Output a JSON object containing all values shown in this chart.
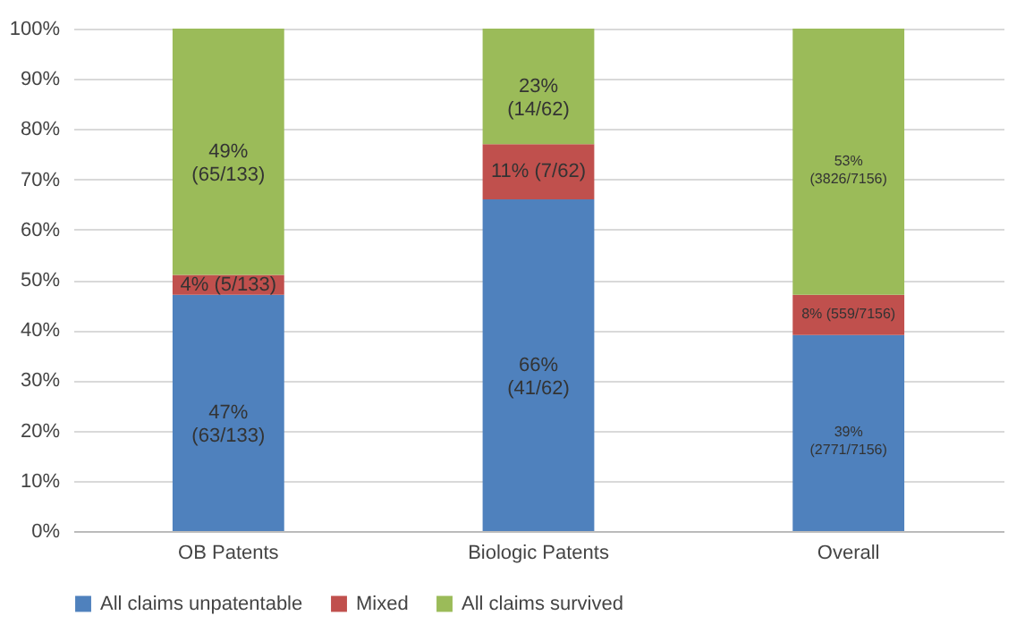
{
  "chart_data": {
    "type": "bar",
    "stacked": true,
    "categories": [
      "OB Patents",
      "Biologic Patents",
      "Overall"
    ],
    "series": [
      {
        "name": "All claims unpatentable",
        "color": "#4f81bd",
        "values": [
          47,
          66,
          39
        ],
        "value_labels": [
          "47%\n(63/133)",
          "66%\n(41/62)",
          "39%\n(2771/7156)"
        ]
      },
      {
        "name": "Mixed",
        "color": "#c0504d",
        "values": [
          4,
          11,
          8
        ],
        "value_labels": [
          "4% (5/133)",
          "11% (7/62)",
          "8% (559/7156)"
        ]
      },
      {
        "name": "All claims survived",
        "color": "#9bbb59",
        "values": [
          49,
          23,
          53
        ],
        "value_labels": [
          "49%\n(65/133)",
          "23%\n(14/62)",
          "53%\n(3826/7156)"
        ]
      }
    ],
    "ylim": [
      0,
      100
    ],
    "yticks": [
      {
        "value": 0,
        "label": "0%"
      },
      {
        "value": 10,
        "label": "10%"
      },
      {
        "value": 20,
        "label": "20%"
      },
      {
        "value": 30,
        "label": "30%"
      },
      {
        "value": 40,
        "label": "40%"
      },
      {
        "value": 50,
        "label": "50%"
      },
      {
        "value": 60,
        "label": "60%"
      },
      {
        "value": 70,
        "label": "70%"
      },
      {
        "value": 80,
        "label": "80%"
      },
      {
        "value": 90,
        "label": "90%"
      },
      {
        "value": 100,
        "label": "100%"
      }
    ],
    "grid": "y",
    "legend": "bottom"
  }
}
